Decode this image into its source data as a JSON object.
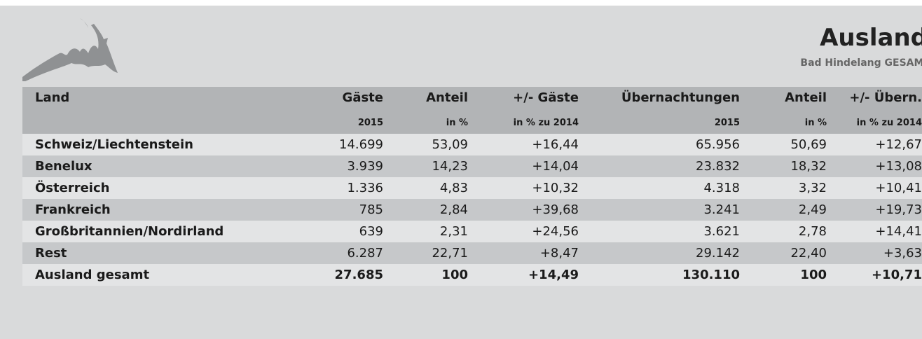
{
  "header": {
    "title": "Ausland",
    "subtitle": "Bad Hindelang GESAMT"
  },
  "table": {
    "columns": [
      [
        "Land",
        ""
      ],
      [
        "Gäste",
        "2015"
      ],
      [
        "Anteil",
        "in %"
      ],
      [
        "+/- Gäste",
        "in % zu 2014"
      ],
      [
        "Übernachtungen",
        "2015"
      ],
      [
        "Anteil",
        "in %"
      ],
      [
        "+/- Übern.",
        "in % zu 2014"
      ]
    ],
    "rows": [
      [
        "Schweiz/Liechtenstein",
        "14.699",
        "53,09",
        "+16,44",
        "65.956",
        "50,69",
        "+12,67"
      ],
      [
        "Benelux",
        "3.939",
        "14,23",
        "+14,04",
        "23.832",
        "18,32",
        "+13,08"
      ],
      [
        "Österreich",
        "1.336",
        "4,83",
        "+10,32",
        "4.318",
        "3,32",
        "+10,41"
      ],
      [
        "Frankreich",
        "785",
        "2,84",
        "+39,68",
        "3.241",
        "2,49",
        "+19,73"
      ],
      [
        "Großbritannien/Nordirland",
        "639",
        "2,31",
        "+24,56",
        "3.621",
        "2,78",
        "+14,41"
      ],
      [
        "Rest",
        "6.287",
        "22,71",
        "+8,47",
        "29.142",
        "22,40",
        "+3,63"
      ],
      [
        "Ausland gesamt",
        "27.685",
        "100",
        "+14,49",
        "130.110",
        "100",
        "+10,71"
      ]
    ]
  }
}
